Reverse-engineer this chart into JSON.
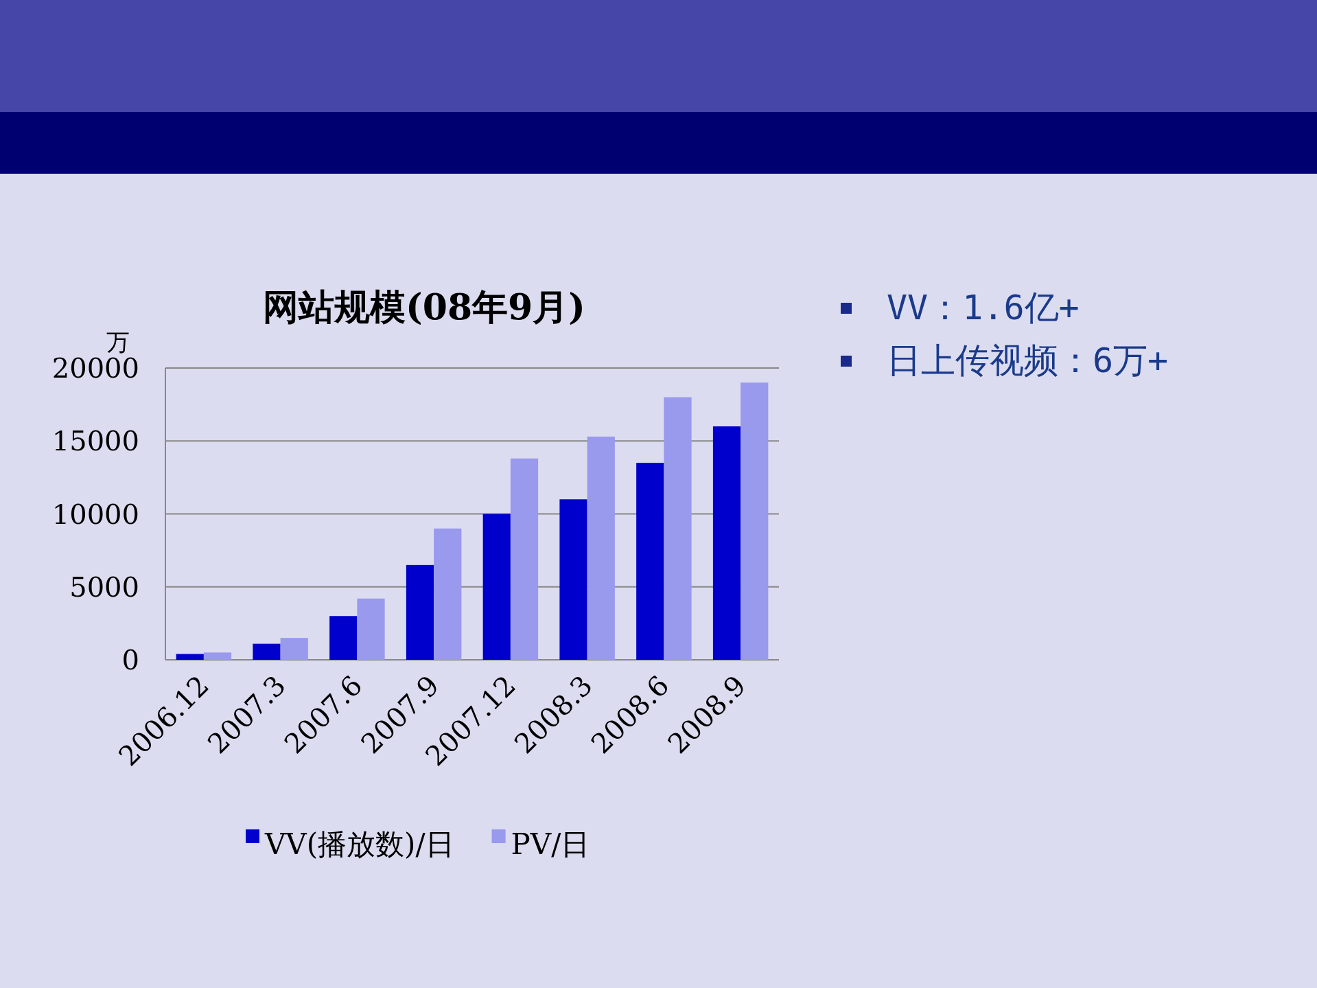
{
  "chart_data": {
    "type": "bar",
    "title": "网站规模(08年9月)",
    "ylabel": "万",
    "categories": [
      "2006.12",
      "2007.3",
      "2007.6",
      "2007.9",
      "2007.12",
      "2008.3",
      "2008.6",
      "2008.9"
    ],
    "series": [
      {
        "name": "VV(播放数)/日",
        "color": "#0000cc",
        "values": [
          400,
          1100,
          3000,
          6500,
          10000,
          11000,
          13500,
          16000
        ]
      },
      {
        "name": "PV/日",
        "color": "#9999ee",
        "values": [
          500,
          1500,
          4200,
          9000,
          13800,
          15300,
          18000,
          19000
        ]
      }
    ],
    "ylim": [
      0,
      20000
    ],
    "yticks": [
      0,
      5000,
      10000,
      15000,
      20000
    ],
    "grid": "y",
    "legend": "bottom",
    "annotations": [
      "VV：1.6亿+",
      "日上传视频：6万+"
    ]
  }
}
